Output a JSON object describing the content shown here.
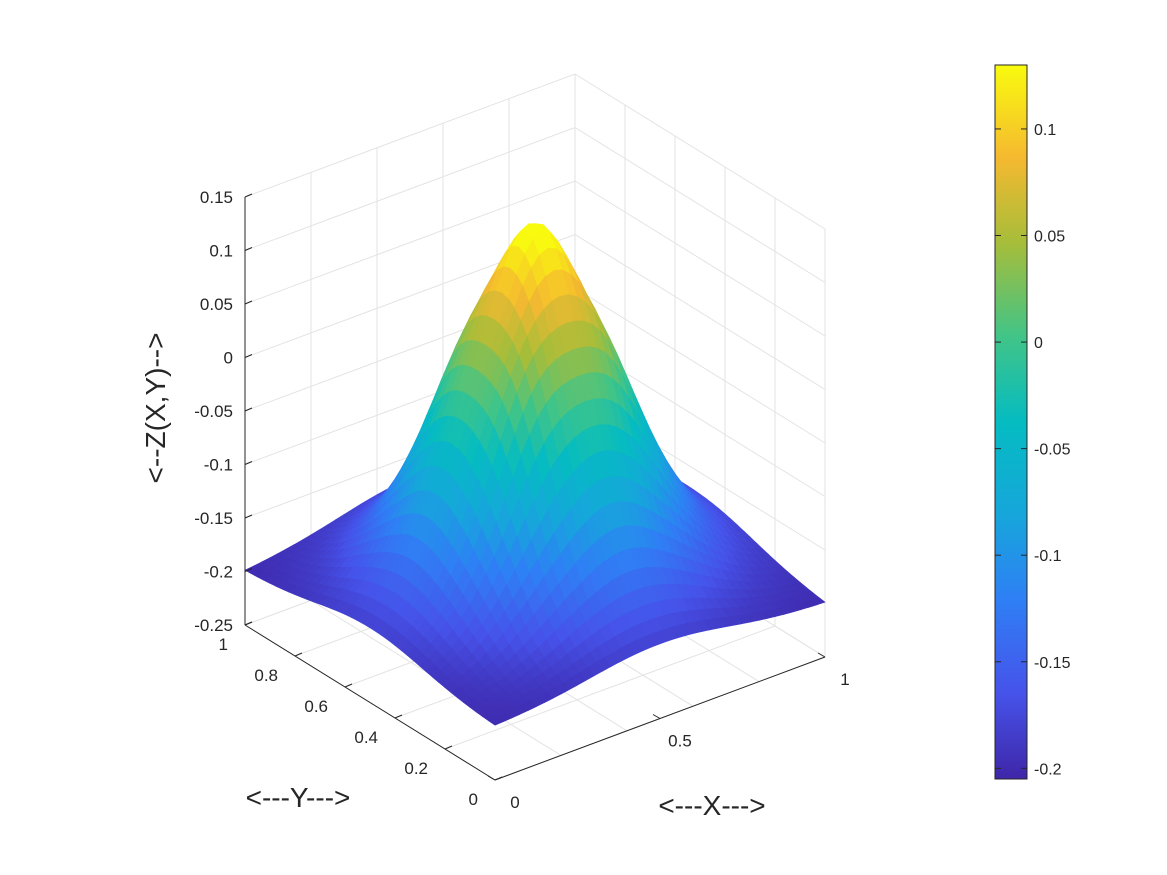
{
  "chart_data": {
    "type": "surface",
    "title": "",
    "xlabel": "<---X--->",
    "ylabel": "<---Y--->",
    "zlabel": "<--Z(X,Y)-->",
    "xlim": [
      0,
      1
    ],
    "ylim": [
      0,
      1
    ],
    "zlim": [
      -0.25,
      0.15
    ],
    "xticks": [
      0,
      0.5,
      1
    ],
    "xtick_labels": [
      "0",
      "0.5",
      "1"
    ],
    "yticks": [
      0,
      0.2,
      0.4,
      0.6,
      0.8,
      1
    ],
    "ytick_labels": [
      "0",
      "0.2",
      "0.4",
      "0.6",
      "0.8",
      "1"
    ],
    "zticks": [
      0.15,
      0.1,
      0.05,
      0,
      -0.05,
      -0.1,
      -0.15,
      -0.2,
      -0.25
    ],
    "ztick_labels": [
      "0.15",
      "0.1",
      "0.05",
      "0",
      "-0.05",
      "-0.1",
      "-0.15",
      "-0.2",
      "-0.25"
    ],
    "grid": true,
    "colormap": "parula",
    "colorbar": {
      "limits": [
        -0.205,
        0.13
      ],
      "ticks": [
        0.1,
        0.05,
        0,
        -0.05,
        -0.1,
        -0.15,
        -0.2
      ],
      "tick_labels": [
        "0.1",
        "0.05",
        "0",
        "-0.05",
        "-0.1",
        "-0.15",
        "-0.2"
      ]
    },
    "surface": {
      "description": "dome with peak near center",
      "z_at_center": 0.12,
      "z_at_corner_x0_y0": -0.2,
      "z_at_corner_x1_y0": -0.19,
      "z_at_corner_x0_y1": -0.16,
      "z_at_corner_x1_y1": 0.0
    }
  }
}
